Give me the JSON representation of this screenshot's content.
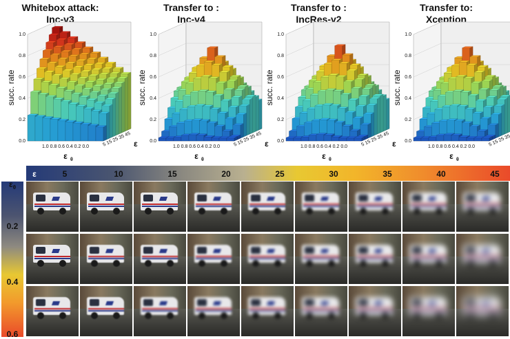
{
  "panels": [
    {
      "title_line1": "Whitebox attack:",
      "title_line2": "Inc-v3"
    },
    {
      "title_line1": "Transfer to :",
      "title_line2": "Inc-v4"
    },
    {
      "title_line1": "Transfer to :",
      "title_line2": "IncRes-v2"
    },
    {
      "title_line1": "Transfer to:",
      "title_line2": "Xception"
    }
  ],
  "axes": {
    "zlabel": "succ. rate",
    "xlabel": "ε",
    "ylabel": "ε",
    "ylabel_sub": "θ",
    "z_ticks": [
      "0.0",
      "0.2",
      "0.4",
      "0.6",
      "0.8",
      "1.0"
    ],
    "eps_theta_ticks": "1.0 0.8 0.6 0.4 0.2 0.0",
    "eps_ticks": "5 15 25 35 45"
  },
  "chart_data": [
    {
      "type": "bar3d",
      "title": "Whitebox attack:\nInc-v3",
      "zlabel": "succ. rate",
      "zlim": [
        0,
        1.0
      ],
      "x_ticks": [
        "1.0",
        "0.8",
        "0.6",
        "0.4",
        "0.2",
        "0.0"
      ],
      "y_ticks": [
        "5",
        "15",
        "25",
        "35",
        "45"
      ],
      "peak": 0.96
    },
    {
      "type": "bar3d",
      "title": "Transfer to :\nInc-v4",
      "zlabel": "succ. rate",
      "zlim": [
        0,
        1.0
      ],
      "x_ticks": [
        "1.0",
        "0.8",
        "0.6",
        "0.4",
        "0.2",
        "0.0"
      ],
      "y_ticks": [
        "5",
        "15",
        "25",
        "35",
        "45"
      ],
      "peak": 0.8
    },
    {
      "type": "bar3d",
      "title": "Transfer to :\nIncRes-v2",
      "zlabel": "succ. rate",
      "zlim": [
        0,
        1.0
      ],
      "x_ticks": [
        "1.0",
        "0.8",
        "0.6",
        "0.4",
        "0.2",
        "0.0"
      ],
      "y_ticks": [
        "5",
        "15",
        "25",
        "35",
        "45"
      ],
      "peak": 0.82
    },
    {
      "type": "bar3d",
      "title": "Transfer to:\nXception",
      "zlabel": "succ. rate",
      "zlim": [
        0,
        1.0
      ],
      "x_ticks": [
        "1.0",
        "0.8",
        "0.6",
        "0.4",
        "0.2",
        "0.0"
      ],
      "y_ticks": [
        "5",
        "15",
        "25",
        "35",
        "45"
      ],
      "peak": 0.8
    }
  ],
  "legend_bar": {
    "label": "ε",
    "ticks": [
      "5",
      "10",
      "15",
      "20",
      "25",
      "30",
      "35",
      "40",
      "45"
    ]
  },
  "side_bar": {
    "label": "ε",
    "label_sub": "θ",
    "ticks": [
      "0.2",
      "0.4",
      "0.6"
    ]
  }
}
